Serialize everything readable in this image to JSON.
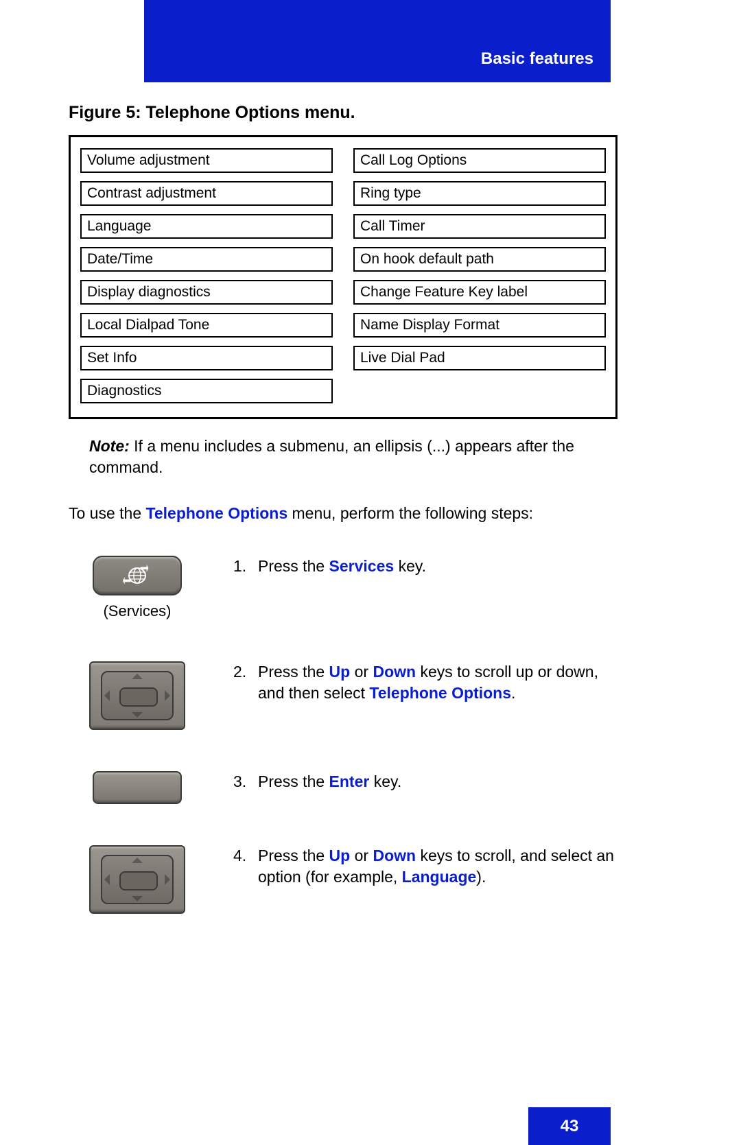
{
  "colors": {
    "brand_blue": "#0a1ecb",
    "text": "#000000",
    "key_bg_top": "#9b968f",
    "key_bg_bottom": "#7a756e",
    "key_border": "#3a3a3a",
    "white": "#ffffff"
  },
  "header": {
    "section_title": "Basic features"
  },
  "figure": {
    "caption": "Figure 5:  Telephone Options menu.",
    "menu_left": [
      "Volume adjustment",
      "Contrast adjustment",
      "Language",
      "Date/Time",
      "Display diagnostics",
      "Local Dialpad Tone",
      "Set Info",
      "Diagnostics"
    ],
    "menu_right": [
      "Call Log Options",
      "Ring type",
      "Call Timer",
      "On hook default path",
      "Change Feature Key label",
      "Name Display Format",
      "Live Dial Pad"
    ]
  },
  "note": {
    "label": "Note:",
    "text": " If a menu includes a submenu, an ellipsis (...) appears after the command."
  },
  "intro": {
    "prefix": "To use the ",
    "link": "Telephone Options",
    "suffix": " menu, perform the following steps:"
  },
  "steps": [
    {
      "num": "1.",
      "key_type": "services",
      "key_caption": "(Services)",
      "parts": [
        {
          "t": "Press the "
        },
        {
          "t": "Services",
          "blue": true
        },
        {
          "t": " key."
        }
      ]
    },
    {
      "num": "2.",
      "key_type": "navpad",
      "parts": [
        {
          "t": "Press the "
        },
        {
          "t": "Up",
          "blue": true
        },
        {
          "t": " or "
        },
        {
          "t": "Down",
          "blue": true
        },
        {
          "t": " keys to scroll up or down, and then select "
        },
        {
          "t": "Telephone Options",
          "blue": true
        },
        {
          "t": "."
        }
      ]
    },
    {
      "num": "3.",
      "key_type": "enter",
      "parts": [
        {
          "t": "Press the "
        },
        {
          "t": "Enter",
          "blue": true
        },
        {
          "t": " key."
        }
      ]
    },
    {
      "num": "4.",
      "key_type": "navpad",
      "parts": [
        {
          "t": "Press the "
        },
        {
          "t": "Up",
          "blue": true
        },
        {
          "t": " or "
        },
        {
          "t": "Down",
          "blue": true
        },
        {
          "t": " keys to scroll, and select an option (for example, "
        },
        {
          "t": "Language",
          "blue": true
        },
        {
          "t": ")."
        }
      ]
    }
  ],
  "page_number": "43"
}
